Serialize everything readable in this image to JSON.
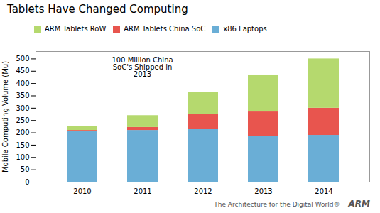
{
  "chart_data": {
    "type": "bar",
    "stacked": true,
    "title": "Tablets Have Changed Computing",
    "ylabel": "Mobile Computing Volume (Mu)",
    "categories": [
      "2010",
      "2011",
      "2012",
      "2013",
      "2014"
    ],
    "series": [
      {
        "name": "x86 Laptops",
        "color": "#6aaed6",
        "values": [
          205,
          210,
          215,
          185,
          190
        ]
      },
      {
        "name": "ARM Tablets China SoC",
        "color": "#e8554e",
        "values": [
          5,
          12,
          60,
          100,
          110
        ]
      },
      {
        "name": "ARM Tablets RoW",
        "color": "#b5d96e",
        "values": [
          15,
          48,
          90,
          150,
          200
        ]
      }
    ],
    "ylim": [
      0,
      530
    ],
    "yticks": [
      0,
      50,
      100,
      150,
      200,
      250,
      300,
      350,
      400,
      450,
      500
    ],
    "grid": false,
    "legend": "upper left",
    "annotations": [
      "100 Million China\nSoC's Shipped in\n2013"
    ],
    "footer": [
      "The Architecture for the Digital World®",
      "ARM"
    ]
  }
}
